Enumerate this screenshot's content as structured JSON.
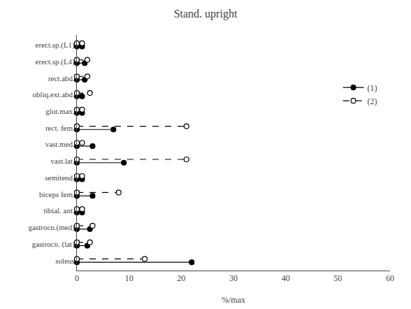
{
  "chart_data": {
    "type": "lollipop",
    "orientation": "horizontal",
    "title": "Stand. upright",
    "xlabel": "%/max",
    "categories": [
      "erect.sp.(L1)",
      "erect.sp.(L4)",
      "rect.abd.",
      "obliq.ext.abd.",
      "glut.max.",
      "rect. fem.",
      "vast.med.",
      "vast.lat.",
      "semitend.",
      "biceps fem.",
      "tibial. ant.",
      "gastrocn.(med)",
      "gastrocn. (lat)",
      "soleus"
    ],
    "series": [
      {
        "name": "(1)",
        "color": "black",
        "marker": "filled",
        "line_style": "solid",
        "values": [
          1.0,
          1.5,
          1.5,
          1.0,
          1.0,
          7.0,
          3.0,
          9.0,
          1.0,
          3.0,
          1.0,
          2.5,
          2.0,
          22.0
        ]
      },
      {
        "name": "(2)",
        "color": "black",
        "marker": "open",
        "line_style": "dashed",
        "values": [
          1.0,
          2.0,
          2.0,
          2.5,
          1.0,
          21.0,
          1.0,
          21.0,
          1.0,
          8.0,
          1.0,
          3.0,
          2.5,
          13.0
        ]
      }
    ],
    "xlim": [
      0,
      60
    ],
    "xticks": [
      0,
      10,
      20,
      30,
      40,
      50,
      60
    ],
    "grid": false,
    "legend": "upper right"
  }
}
